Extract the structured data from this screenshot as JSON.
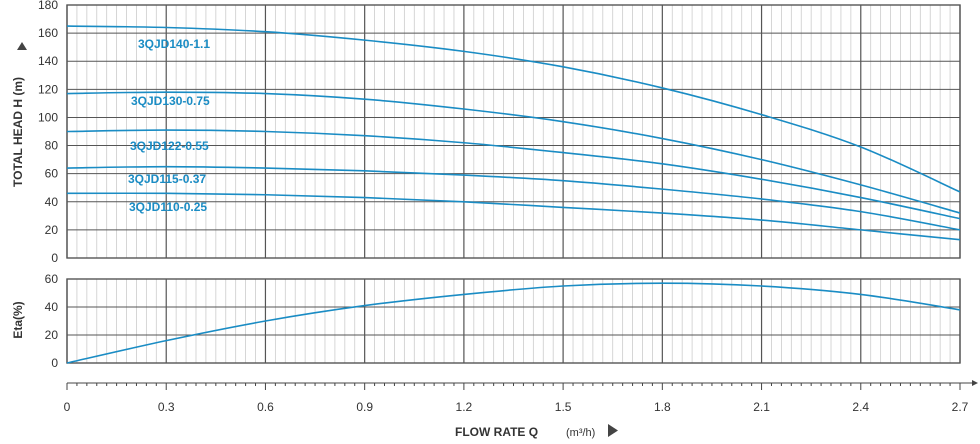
{
  "chart_data": [
    {
      "type": "line",
      "ylabel": "TOTAL HEAD H (m)",
      "xlim": [
        0,
        2.7
      ],
      "ylim": [
        0,
        180
      ],
      "yticks": [
        "0",
        "20",
        "40",
        "60",
        "80",
        "100",
        "120",
        "140",
        "160",
        "180"
      ],
      "grid": true,
      "series": [
        {
          "name": "3QJD140-1.1",
          "x": [
            0,
            0.3,
            0.6,
            0.9,
            1.2,
            1.5,
            1.8,
            2.1,
            2.4,
            2.7
          ],
          "y": [
            165,
            164,
            161,
            155,
            147,
            136,
            121,
            102,
            79,
            47
          ]
        },
        {
          "name": "3QJD130-0.75",
          "x": [
            0,
            0.3,
            0.6,
            0.9,
            1.2,
            1.5,
            1.8,
            2.1,
            2.4,
            2.7
          ],
          "y": [
            117,
            118,
            117,
            113,
            106,
            97,
            85,
            70,
            52,
            32
          ]
        },
        {
          "name": "3QJD122-0.55",
          "x": [
            0,
            0.3,
            0.6,
            0.9,
            1.2,
            1.5,
            1.8,
            2.1,
            2.4,
            2.7
          ],
          "y": [
            90,
            91,
            90,
            87,
            82,
            75,
            67,
            56,
            43,
            28
          ]
        },
        {
          "name": "3QJD115-0.37",
          "x": [
            0,
            0.3,
            0.6,
            0.9,
            1.2,
            1.5,
            1.8,
            2.1,
            2.4,
            2.7
          ],
          "y": [
            64,
            65,
            64,
            62,
            59,
            55,
            49,
            42,
            33,
            20
          ]
        },
        {
          "name": "3QJD110-0.25",
          "x": [
            0,
            0.3,
            0.6,
            0.9,
            1.2,
            1.5,
            1.8,
            2.1,
            2.4,
            2.7
          ],
          "y": [
            46,
            46,
            45,
            43,
            40,
            36,
            32,
            27,
            20,
            13
          ]
        }
      ]
    },
    {
      "type": "line",
      "ylabel": "Eta(%)",
      "xlabel": "FLOW RATE Q",
      "xunit": "(m³/h)",
      "xlim": [
        0,
        2.7
      ],
      "ylim": [
        0,
        60
      ],
      "yticks": [
        "0",
        "20",
        "40",
        "60"
      ],
      "xticks": [
        "0",
        "0.3",
        "0.6",
        "0.9",
        "1.2",
        "1.5",
        "1.8",
        "2.1",
        "2.4",
        "2.7"
      ],
      "grid": true,
      "series": [
        {
          "x": [
            0,
            0.3,
            0.6,
            0.9,
            1.2,
            1.5,
            1.8,
            2.1,
            2.4,
            2.7
          ],
          "y": [
            0,
            16,
            30,
            41,
            49,
            55,
            57,
            55,
            49,
            38
          ]
        }
      ]
    }
  ],
  "colors": {
    "line": "#1a8cc4",
    "label": "#1a8cc4",
    "grid_major": "#555555",
    "grid_minor": "#cccccc",
    "arrow": "#444444"
  }
}
